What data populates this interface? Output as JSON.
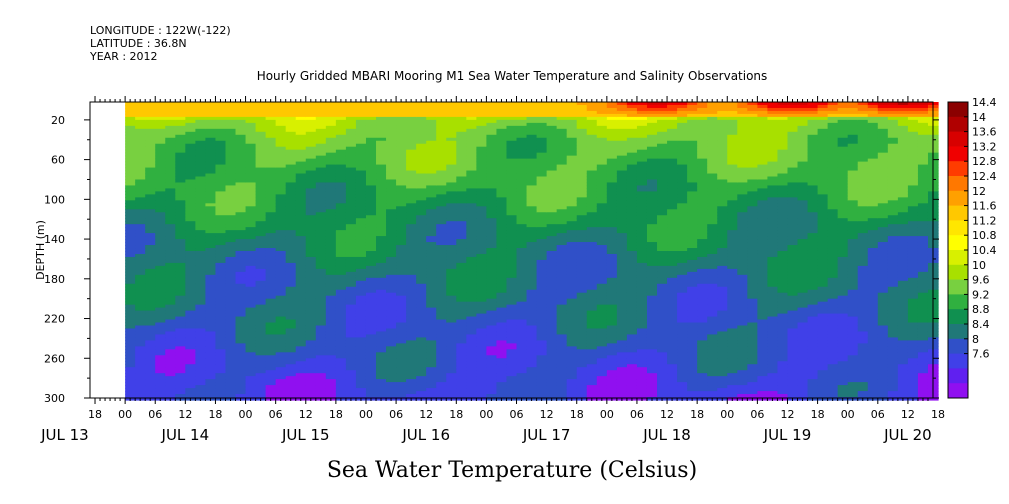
{
  "header": {
    "longitude": "LONGITUDE : 122W(-122)",
    "latitude": "LATITUDE : 36.8N",
    "year": "YEAR : 2012"
  },
  "chart_data": {
    "type": "heatmap",
    "title": "Hourly Gridded MBARI Mooring M1 Sea Water Temperature and Salinity Observations",
    "ylabel": "DEPTH (m)",
    "xlabel": "Sea Water Temperature (Celsius)",
    "y_ticks": [
      "20",
      "60",
      "100",
      "140",
      "180",
      "220",
      "260",
      "300"
    ],
    "y_tick_values": [
      20,
      60,
      100,
      140,
      180,
      220,
      260,
      300
    ],
    "ylim": [
      300,
      2
    ],
    "x_hour_labels": [
      "18",
      "00",
      "06",
      "12",
      "18",
      "00",
      "06",
      "12",
      "18",
      "00",
      "06",
      "12",
      "18",
      "00",
      "06",
      "12",
      "18",
      "00",
      "06",
      "12",
      "18",
      "00",
      "06",
      "12",
      "18",
      "00",
      "06",
      "12",
      "18"
    ],
    "x_day_labels": [
      "JUL 13",
      "JUL 14",
      "JUL 15",
      "JUL 16",
      "JUL 17",
      "JUL 18",
      "JUL 19",
      "JUL 20"
    ],
    "xlim_hours": [
      -7,
      161
    ],
    "data_start_hour": 0,
    "depth_levels": [
      5,
      10,
      20,
      30,
      40,
      60,
      80,
      100,
      140,
      180,
      220,
      260,
      300
    ],
    "depth_profile_celsius": [
      11.8,
      11.4,
      10.1,
      9.9,
      9.7,
      9.6,
      9.4,
      9.2,
      8.8,
      8.5,
      8.3,
      8.1,
      7.8
    ],
    "warm_events": [
      {
        "center_hour": 105,
        "peak_celsius": 14.0
      },
      {
        "center_hour": 132,
        "peak_celsius": 14.2
      },
      {
        "center_hour": 154,
        "peak_celsius": 14.4
      }
    ],
    "colorbar": {
      "labels": [
        "14.4",
        "14",
        "13.6",
        "13.2",
        "12.8",
        "12.4",
        "12",
        "11.6",
        "11.2",
        "10.8",
        "10.4",
        "10",
        "9.6",
        "9.2",
        "8.8",
        "8.4",
        "8",
        "7.6"
      ],
      "levels": [
        14.4,
        14.0,
        13.6,
        13.2,
        12.8,
        12.4,
        12.0,
        11.6,
        11.2,
        10.8,
        10.4,
        10.0,
        9.6,
        9.2,
        8.8,
        8.4,
        8.0,
        7.6
      ],
      "colors": [
        "#8b0000",
        "#b00000",
        "#d80000",
        "#f00000",
        "#ff3c00",
        "#ff7800",
        "#ffa000",
        "#ffc800",
        "#ffe600",
        "#ffff00",
        "#d8f000",
        "#a8e000",
        "#78d040",
        "#30b040",
        "#109050",
        "#207878",
        "#3050c8",
        "#4040e8",
        "#6020f0",
        "#9010f0"
      ]
    }
  }
}
